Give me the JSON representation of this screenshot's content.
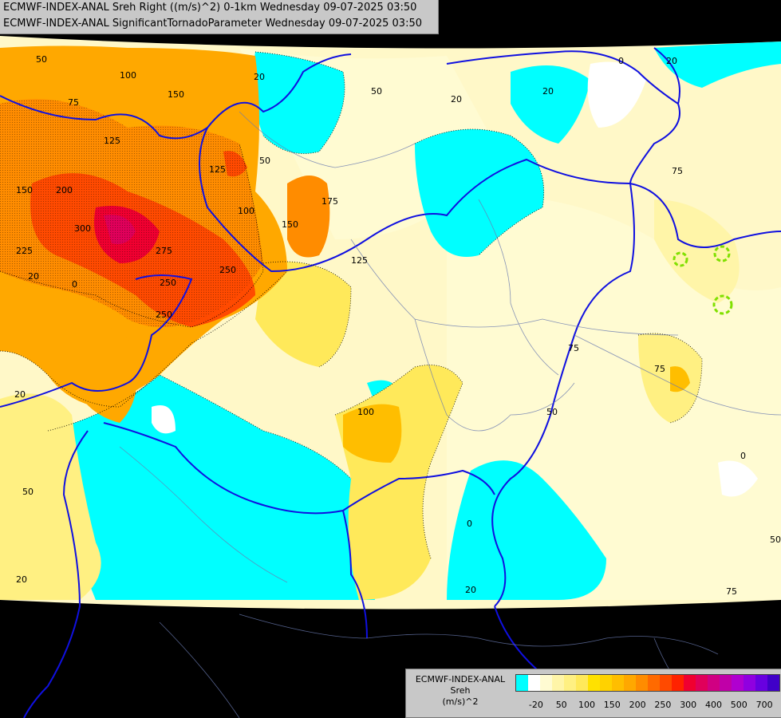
{
  "header": {
    "line1": "ECMWF-INDEX-ANAL Sreh Right ((m/s)^2) 0-1km Wednesday 09-07-2025 03:50",
    "line2": "ECMWF-INDEX-ANAL SignificantTornadoParameter Wednesday 09-07-2025 03:50"
  },
  "legend": {
    "model": "ECMWF-INDEX-ANAL",
    "variable": "Sreh",
    "unit": "(m/s)^2",
    "colors": [
      "#00ffff",
      "#ffffff",
      "#fffbd2",
      "#fff5a8",
      "#fff082",
      "#ffe95a",
      "#ffe100",
      "#ffd200",
      "#ffbe00",
      "#ffa800",
      "#ff8c00",
      "#ff6a00",
      "#ff4a00",
      "#ff2200",
      "#f00030",
      "#e0005a",
      "#d00082",
      "#c000a8",
      "#b000d0",
      "#9000e0",
      "#6800e0",
      "#4000c8",
      "#2000a8",
      "#000080"
    ],
    "ticks": [
      {
        "label": "-20",
        "i": 1
      },
      {
        "label": "50",
        "i": 3
      },
      {
        "label": "100",
        "i": 5
      },
      {
        "label": "150",
        "i": 7
      },
      {
        "label": "200",
        "i": 9
      },
      {
        "label": "250",
        "i": 11
      },
      {
        "label": "300",
        "i": 13
      },
      {
        "label": "400",
        "i": 15
      },
      {
        "label": "500",
        "i": 17
      },
      {
        "label": "700",
        "i": 19
      }
    ]
  },
  "map_labels": [
    "50",
    "100",
    "150",
    "75",
    "125",
    "200",
    "150",
    "225",
    "300",
    "275",
    "250",
    "250",
    "125",
    "100",
    "175",
    "150",
    "250",
    "125",
    "20",
    "0",
    "50",
    "20",
    "20",
    "0",
    "20",
    "50",
    "75",
    "50",
    "75",
    "100",
    "20",
    "75",
    "50",
    "20",
    "0",
    "0",
    "20",
    "75",
    "20",
    "50"
  ]
}
